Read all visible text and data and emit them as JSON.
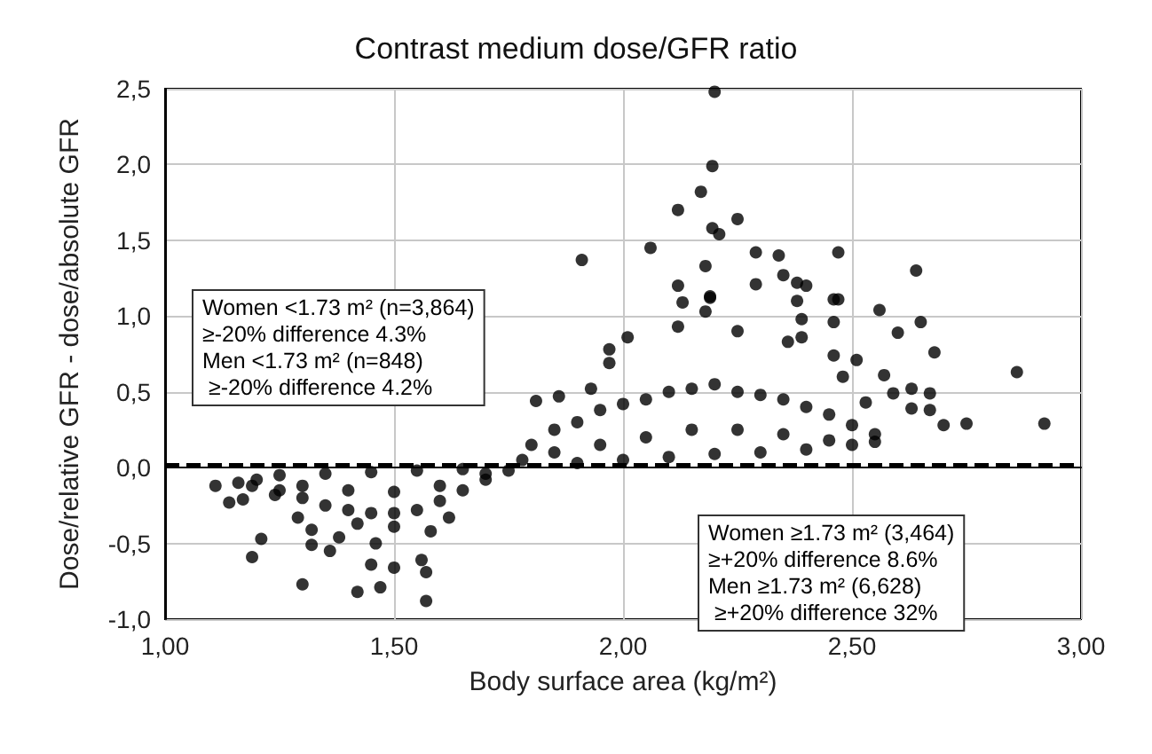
{
  "chart_data": {
    "type": "scatter",
    "title": "Contrast medium dose/GFR ratio",
    "xlabel": "Body surface area (kg/m²)",
    "ylabel": "Dose/relative GFR - dose/absolute GFR",
    "annotations": [
      "Women <1.73 m² (n=3,864)\n≥-20% difference 4.3%\nMen <1.73 m² (n=848)\n ≥-20% difference 4.2%",
      "Women ≥1.73 m² (3,464)\n≥+20% difference 8.6%\nMen ≥1.73 m² (6,628)\n ≥+20% difference 32%"
    ],
    "xlim": [
      1,
      3
    ],
    "xticks": [
      {
        "value": 1,
        "label": "1,00"
      },
      {
        "value": 1.5,
        "label": "1,50"
      },
      {
        "value": 2,
        "label": "2,00"
      },
      {
        "value": 2.5,
        "label": "2,50"
      },
      {
        "value": 3,
        "label": "3,00"
      }
    ],
    "ylim": [
      -1,
      2.5
    ],
    "yticks": [
      {
        "value": -1,
        "label": "-1,0"
      },
      {
        "value": -0.5,
        "label": "-0,5"
      },
      {
        "value": 0,
        "label": "0,0"
      },
      {
        "value": 0.5,
        "label": "0,5"
      },
      {
        "value": 1,
        "label": "1,0"
      },
      {
        "value": 1.5,
        "label": "1,5"
      },
      {
        "value": 2,
        "label": "2,0"
      },
      {
        "value": 2.5,
        "label": "2,5"
      }
    ],
    "grid": true,
    "marker": "circle",
    "ref_lines": [
      {
        "axis": "y",
        "value": 0.02,
        "label": null,
        "color": "#000000",
        "line_style": "dashed"
      }
    ],
    "series": [
      {
        "color": "#000000",
        "x": [
          2.2,
          2.195,
          2.17,
          2.12,
          2.25,
          2.195,
          2.21,
          2.06,
          1.91,
          2.29,
          2.34,
          2.18,
          2.47,
          2.12,
          2.29,
          2.35,
          2.38,
          2.4,
          2.13,
          2.19,
          2.47,
          2.38,
          2.64,
          2.56,
          2.6,
          2.65,
          2.68,
          2.86,
          2.92,
          2.46,
          2.46,
          2.57,
          2.59,
          2.63,
          2.67,
          2.67,
          2.7,
          2.75,
          2.63,
          2.51,
          2.53,
          2.19,
          2.18,
          2.12,
          2.01,
          1.97,
          1.97,
          1.93,
          1.86,
          1.81,
          2.25,
          2.36,
          2.39,
          2.39,
          2.46,
          2.48,
          1.11,
          1.14,
          1.16,
          1.17,
          1.21,
          1.19,
          1.3,
          1.32,
          1.36,
          1.42,
          1.47,
          1.45,
          1.5,
          1.56,
          1.57,
          1.57,
          1.46,
          1.38,
          1.42,
          1.58,
          1.62,
          1.5,
          1.29,
          1.32,
          1.19,
          1.24,
          1.2,
          1.25,
          1.3,
          1.35,
          1.4,
          1.45,
          1.5,
          1.55,
          1.6,
          1.65,
          1.7,
          1.75,
          1.25,
          1.35,
          1.45,
          1.55,
          1.65,
          1.3,
          1.4,
          1.5,
          1.6,
          1.7,
          1.78,
          1.8,
          1.85,
          1.9,
          1.95,
          2.0,
          2.05,
          2.1,
          2.15,
          2.2,
          2.25,
          2.3,
          2.35,
          2.4,
          2.45,
          2.5,
          2.55,
          1.85,
          1.95,
          2.05,
          2.15,
          2.25,
          2.35,
          2.45,
          1.9,
          2.0,
          2.1,
          2.2,
          2.3,
          2.4,
          2.5,
          2.55
        ],
        "values": [
          2.48,
          1.99,
          1.82,
          1.7,
          1.64,
          1.58,
          1.54,
          1.45,
          1.37,
          1.42,
          1.4,
          1.33,
          1.42,
          1.2,
          1.21,
          1.27,
          1.22,
          1.2,
          1.09,
          1.12,
          1.11,
          1.1,
          1.3,
          1.04,
          0.89,
          0.96,
          0.76,
          0.63,
          0.29,
          1.11,
          0.96,
          0.61,
          0.49,
          0.52,
          0.49,
          0.38,
          0.28,
          0.29,
          0.39,
          0.71,
          0.43,
          1.13,
          1.03,
          0.93,
          0.86,
          0.78,
          0.69,
          0.52,
          0.47,
          0.44,
          0.9,
          0.83,
          0.86,
          0.98,
          0.74,
          0.6,
          -0.12,
          -0.23,
          -0.1,
          -0.21,
          -0.47,
          -0.59,
          -0.77,
          -0.51,
          -0.55,
          -0.82,
          -0.79,
          -0.64,
          -0.66,
          -0.61,
          -0.69,
          -0.88,
          -0.5,
          -0.46,
          -0.37,
          -0.42,
          -0.33,
          -0.39,
          -0.33,
          -0.41,
          -0.12,
          -0.18,
          -0.08,
          -0.15,
          -0.2,
          -0.25,
          -0.28,
          -0.3,
          -0.3,
          -0.28,
          -0.22,
          -0.15,
          -0.08,
          -0.02,
          -0.05,
          -0.04,
          -0.03,
          -0.02,
          -0.01,
          -0.12,
          -0.15,
          -0.16,
          -0.12,
          -0.04,
          0.05,
          0.15,
          0.25,
          0.3,
          0.38,
          0.42,
          0.45,
          0.5,
          0.52,
          0.55,
          0.5,
          0.48,
          0.45,
          0.4,
          0.35,
          0.28,
          0.22,
          0.1,
          0.15,
          0.2,
          0.25,
          0.25,
          0.22,
          0.18,
          0.03,
          0.05,
          0.07,
          0.09,
          0.1,
          0.12,
          0.15,
          0.17
        ]
      }
    ]
  }
}
